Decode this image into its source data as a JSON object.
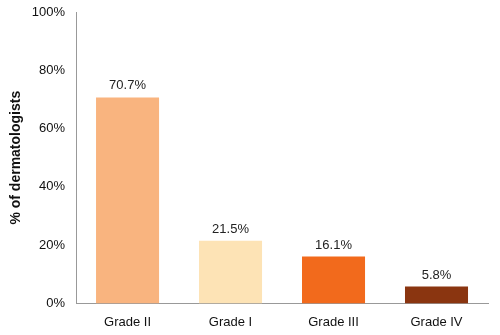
{
  "chart_data": {
    "type": "bar",
    "y_label": "% of dermatologists",
    "categories": [
      "Grade II",
      "Grade I",
      "Grade III",
      "Grade IV"
    ],
    "values": [
      70.7,
      21.5,
      16.1,
      5.8
    ],
    "value_labels": [
      "70.7%",
      "21.5%",
      "16.1%",
      "5.8%"
    ],
    "colors": [
      "#f9b47f",
      "#fde3b5",
      "#f26a1c",
      "#8a3510"
    ],
    "ylim": [
      0,
      100
    ],
    "yticks": [
      {
        "value": 0,
        "label": "0%"
      },
      {
        "value": 20,
        "label": "20%"
      },
      {
        "value": 40,
        "label": "40%"
      },
      {
        "value": 60,
        "label": "60%"
      },
      {
        "value": 80,
        "label": "80%"
      },
      {
        "value": 100,
        "label": "100%"
      }
    ],
    "grid": false,
    "data_labels": true
  }
}
